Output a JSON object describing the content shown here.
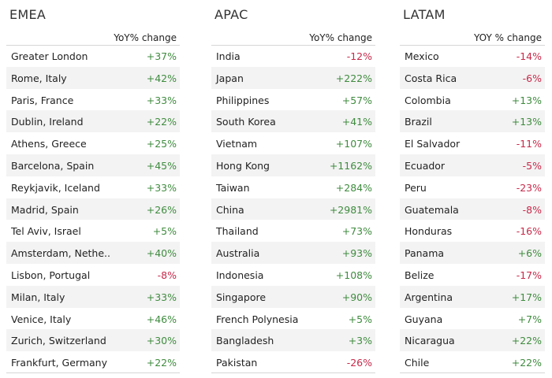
{
  "chart_data": [
    {
      "type": "table",
      "title": "EMEA",
      "column_header": "YoY% change",
      "rows": [
        {
          "name": "Greater London",
          "value": "+37%"
        },
        {
          "name": "Rome, Italy",
          "value": "+42%"
        },
        {
          "name": "Paris, France",
          "value": "+33%"
        },
        {
          "name": "Dublin, Ireland",
          "value": "+22%"
        },
        {
          "name": "Athens, Greece",
          "value": "+25%"
        },
        {
          "name": "Barcelona, Spain",
          "value": "+45%"
        },
        {
          "name": "Reykjavik, Iceland",
          "value": "+33%"
        },
        {
          "name": "Madrid, Spain",
          "value": "+26%"
        },
        {
          "name": "Tel Aviv, Israel",
          "value": "+5%"
        },
        {
          "name": "Amsterdam, Nethe..",
          "value": "+40%"
        },
        {
          "name": "Lisbon, Portugal",
          "value": "-8%"
        },
        {
          "name": "Milan, Italy",
          "value": "+33%"
        },
        {
          "name": "Venice, Italy",
          "value": "+46%"
        },
        {
          "name": "Zurich, Switzerland",
          "value": "+30%"
        },
        {
          "name": "Frankfurt, Germany",
          "value": "+22%"
        }
      ]
    },
    {
      "type": "table",
      "title": "APAC",
      "column_header": "YoY% change",
      "rows": [
        {
          "name": "India",
          "value": "-12%"
        },
        {
          "name": "Japan",
          "value": "+222%"
        },
        {
          "name": "Philippines",
          "value": "+57%"
        },
        {
          "name": "South Korea",
          "value": "+41%"
        },
        {
          "name": "Vietnam",
          "value": "+107%"
        },
        {
          "name": "Hong Kong",
          "value": "+1162%"
        },
        {
          "name": "Taiwan",
          "value": "+284%"
        },
        {
          "name": "China",
          "value": "+2981%"
        },
        {
          "name": "Thailand",
          "value": "+73%"
        },
        {
          "name": "Australia",
          "value": "+93%"
        },
        {
          "name": "Indonesia",
          "value": "+108%"
        },
        {
          "name": "Singapore",
          "value": "+90%"
        },
        {
          "name": "French Polynesia",
          "value": "+5%"
        },
        {
          "name": "Bangladesh",
          "value": "+3%"
        },
        {
          "name": "Pakistan",
          "value": "-26%"
        }
      ]
    },
    {
      "type": "table",
      "title": "LATAM",
      "column_header": "YOY % change",
      "rows": [
        {
          "name": "Mexico",
          "value": "-14%"
        },
        {
          "name": "Costa Rica",
          "value": "-6%"
        },
        {
          "name": "Colombia",
          "value": "+13%"
        },
        {
          "name": "Brazil",
          "value": "+13%"
        },
        {
          "name": "El Salvador",
          "value": "-11%"
        },
        {
          "name": "Ecuador",
          "value": "-5%"
        },
        {
          "name": "Peru",
          "value": "-23%"
        },
        {
          "name": "Guatemala",
          "value": "-8%"
        },
        {
          "name": "Honduras",
          "value": "-16%"
        },
        {
          "name": "Panama",
          "value": "+6%"
        },
        {
          "name": "Belize",
          "value": "-17%"
        },
        {
          "name": "Argentina",
          "value": "+17%"
        },
        {
          "name": "Guyana",
          "value": "+7%"
        },
        {
          "name": "Nicaragua",
          "value": "+22%"
        },
        {
          "name": "Chile",
          "value": "+22%"
        }
      ]
    }
  ],
  "colors": {
    "positive": "#3f8b3f",
    "negative": "#c8294a",
    "row_stripe": "#f3f3f3",
    "rule": "#d6d6d6"
  }
}
